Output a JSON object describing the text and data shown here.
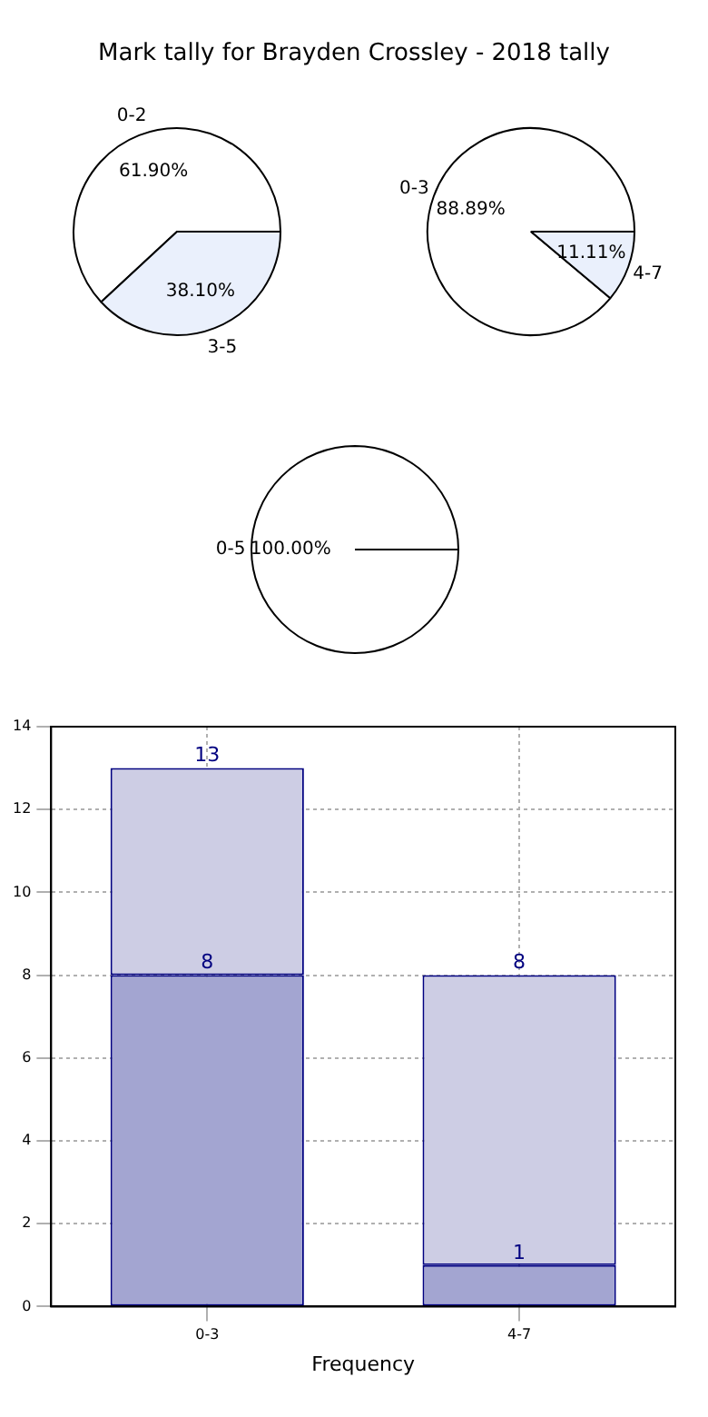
{
  "chart_data": [
    {
      "type": "pie",
      "title": "Mark tally for Brayden Crossley - 2018 tally",
      "categories": [
        "0-2",
        "3-5"
      ],
      "values": [
        61.9,
        38.1
      ],
      "colors": [
        "#ffffff",
        "#eaf0fc"
      ],
      "value_labels": [
        "61.90%",
        "38.10%"
      ]
    },
    {
      "type": "pie",
      "categories": [
        "0-3",
        "4-7"
      ],
      "values": [
        88.89,
        11.11
      ],
      "colors": [
        "#ffffff",
        "#eaf0fc"
      ],
      "value_labels": [
        "88.89%",
        "11.11%"
      ]
    },
    {
      "type": "pie",
      "categories": [
        "0-5"
      ],
      "values": [
        100
      ],
      "colors": [
        "#ffffff"
      ],
      "value_labels": [
        "100.00%"
      ]
    },
    {
      "type": "bar",
      "xlabel": "Frequency",
      "categories": [
        "0-3",
        "4-7"
      ],
      "stacked": true,
      "series": [
        {
          "color": "#a3a5d1",
          "values": [
            8,
            1
          ],
          "value_labels": [
            "8",
            "1"
          ]
        },
        {
          "color": "#cdcde4",
          "values": [
            5,
            7
          ]
        }
      ],
      "totals": [
        "13",
        "8"
      ],
      "ylim": [
        0,
        14
      ],
      "yticks": [
        0,
        2,
        4,
        6,
        8,
        10,
        12,
        14
      ],
      "grid": true
    }
  ]
}
